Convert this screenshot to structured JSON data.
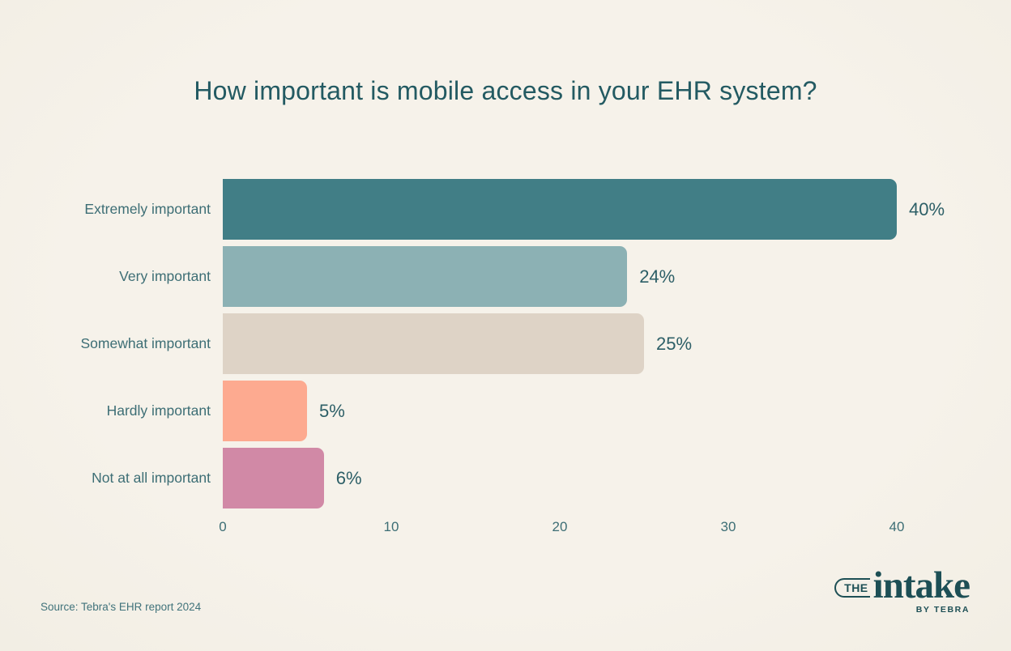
{
  "title": "How important is mobile access in your EHR system?",
  "chart_data": {
    "type": "bar",
    "orientation": "horizontal",
    "title": "How important is mobile access in your EHR system?",
    "categories": [
      "Extremely important",
      "Very important",
      "Somewhat important",
      "Hardly important",
      "Not at all important"
    ],
    "values": [
      40,
      24,
      25,
      5,
      6
    ],
    "value_labels": [
      "40%",
      "24%",
      "25%",
      "5%",
      "6%"
    ],
    "bar_colors": [
      "#417e86",
      "#8cb1b4",
      "#ded3c6",
      "#fdaa90",
      "#d189a6"
    ],
    "xticks": [
      "0",
      "10",
      "20",
      "30",
      "40"
    ],
    "xtick_values": [
      0,
      10,
      20,
      30,
      40
    ],
    "xlim": [
      0,
      40
    ],
    "xlabel": "",
    "ylabel": "",
    "grid": false,
    "legend": false
  },
  "source": "Source: Tebra's EHR report 2024",
  "logo": {
    "the": "THE",
    "name": "intake",
    "byline": "BY TEBRA"
  },
  "colors": {
    "background": "#f5f1e9",
    "title_text": "#235a62",
    "label_text": "#3d6e75",
    "value_text": "#2d5f67",
    "logo": "#1d4f55"
  }
}
